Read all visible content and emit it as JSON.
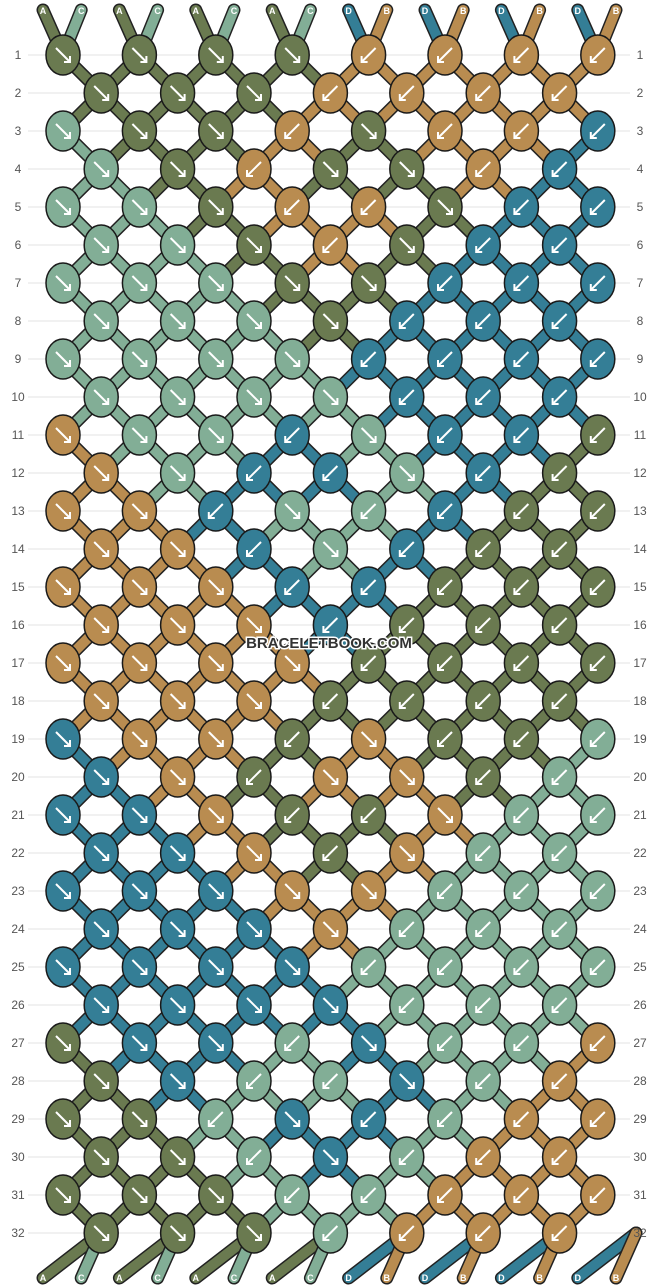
{
  "watermark": "BRACELETBOOK.COM",
  "colors": {
    "A": "#6a7a50",
    "C": "#82ae96",
    "D": "#347e96",
    "B": "#b98c50"
  },
  "strands_top": [
    "A",
    "C",
    "A",
    "C",
    "A",
    "C",
    "A",
    "C",
    "D",
    "B",
    "D",
    "B",
    "D",
    "B",
    "D",
    "B"
  ],
  "strands_bottom": [
    "A",
    "C",
    "A",
    "C",
    "A",
    "C",
    "A",
    "C",
    "D",
    "B",
    "D",
    "B",
    "D",
    "B",
    "D",
    "B"
  ],
  "row_numbers": [
    "1",
    "2",
    "3",
    "4",
    "5",
    "6",
    "7",
    "8",
    "9",
    "10",
    "11",
    "12",
    "13",
    "14",
    "15",
    "16",
    "17",
    "18",
    "19",
    "20",
    "21",
    "22",
    "23",
    "24",
    "25",
    "26",
    "27",
    "28",
    "29",
    "30",
    "31",
    "32"
  ],
  "knot_rows": [
    {
      "row": "1",
      "colors": [
        "A",
        "A",
        "A",
        "A",
        "B",
        "B",
        "B",
        "B"
      ],
      "arrows": [
        "R",
        "R",
        "R",
        "R",
        "L",
        "L",
        "L",
        "L"
      ]
    },
    {
      "row": "2",
      "colors": [
        "A",
        "A",
        "A",
        "B",
        "B",
        "B",
        "B"
      ],
      "arrows": [
        "R",
        "R",
        "R",
        "L",
        "L",
        "L",
        "L"
      ]
    },
    {
      "row": "3",
      "colors": [
        "C",
        "A",
        "A",
        "B",
        "A",
        "B",
        "B",
        "D"
      ],
      "arrows": [
        "R",
        "R",
        "R",
        "L",
        "R",
        "L",
        "L",
        "L"
      ]
    },
    {
      "row": "4",
      "colors": [
        "C",
        "A",
        "B",
        "A",
        "A",
        "B",
        "D"
      ],
      "arrows": [
        "R",
        "R",
        "L",
        "R",
        "R",
        "L",
        "L"
      ]
    },
    {
      "row": "5",
      "colors": [
        "C",
        "C",
        "A",
        "B",
        "B",
        "A",
        "D",
        "D"
      ],
      "arrows": [
        "R",
        "R",
        "R",
        "L",
        "L",
        "R",
        "L",
        "L"
      ]
    },
    {
      "row": "6",
      "colors": [
        "C",
        "C",
        "A",
        "B",
        "A",
        "D",
        "D"
      ],
      "arrows": [
        "R",
        "R",
        "R",
        "L",
        "R",
        "L",
        "L"
      ]
    },
    {
      "row": "7",
      "colors": [
        "C",
        "C",
        "C",
        "A",
        "A",
        "D",
        "D",
        "D"
      ],
      "arrows": [
        "R",
        "R",
        "R",
        "R",
        "R",
        "L",
        "L",
        "L"
      ]
    },
    {
      "row": "8",
      "colors": [
        "C",
        "C",
        "C",
        "A",
        "D",
        "D",
        "D"
      ],
      "arrows": [
        "R",
        "R",
        "R",
        "R",
        "L",
        "L",
        "L"
      ]
    },
    {
      "row": "9",
      "colors": [
        "C",
        "C",
        "C",
        "C",
        "D",
        "D",
        "D",
        "D"
      ],
      "arrows": [
        "R",
        "R",
        "R",
        "R",
        "L",
        "L",
        "L",
        "L"
      ]
    },
    {
      "row": "10",
      "colors": [
        "C",
        "C",
        "C",
        "C",
        "D",
        "D",
        "D"
      ],
      "arrows": [
        "R",
        "R",
        "R",
        "R",
        "L",
        "L",
        "L"
      ]
    },
    {
      "row": "11",
      "colors": [
        "B",
        "C",
        "C",
        "D",
        "C",
        "D",
        "D",
        "A"
      ],
      "arrows": [
        "R",
        "R",
        "R",
        "L",
        "R",
        "L",
        "L",
        "L"
      ]
    },
    {
      "row": "12",
      "colors": [
        "B",
        "C",
        "D",
        "D",
        "C",
        "D",
        "A"
      ],
      "arrows": [
        "R",
        "R",
        "L",
        "L",
        "R",
        "L",
        "L"
      ]
    },
    {
      "row": "13",
      "colors": [
        "B",
        "B",
        "D",
        "C",
        "C",
        "D",
        "A",
        "A"
      ],
      "arrows": [
        "R",
        "R",
        "L",
        "R",
        "L",
        "L",
        "L",
        "L"
      ]
    },
    {
      "row": "14",
      "colors": [
        "B",
        "B",
        "D",
        "C",
        "D",
        "A",
        "A"
      ],
      "arrows": [
        "R",
        "R",
        "L",
        "R",
        "L",
        "L",
        "L"
      ]
    },
    {
      "row": "15",
      "colors": [
        "B",
        "B",
        "B",
        "D",
        "D",
        "A",
        "A",
        "A"
      ],
      "arrows": [
        "R",
        "R",
        "R",
        "L",
        "L",
        "L",
        "L",
        "L"
      ]
    },
    {
      "row": "16",
      "colors": [
        "B",
        "B",
        "B",
        "D",
        "A",
        "A",
        "A"
      ],
      "arrows": [
        "R",
        "R",
        "R",
        "L",
        "L",
        "L",
        "L"
      ]
    },
    {
      "row": "17",
      "colors": [
        "B",
        "B",
        "B",
        "B",
        "A",
        "A",
        "A",
        "A"
      ],
      "arrows": [
        "R",
        "R",
        "R",
        "R",
        "L",
        "L",
        "L",
        "L"
      ]
    },
    {
      "row": "18",
      "colors": [
        "B",
        "B",
        "B",
        "A",
        "A",
        "A",
        "A"
      ],
      "arrows": [
        "R",
        "R",
        "R",
        "L",
        "L",
        "L",
        "L"
      ]
    },
    {
      "row": "19",
      "colors": [
        "D",
        "B",
        "B",
        "A",
        "B",
        "A",
        "A",
        "C"
      ],
      "arrows": [
        "R",
        "R",
        "R",
        "L",
        "R",
        "L",
        "L",
        "L"
      ]
    },
    {
      "row": "20",
      "colors": [
        "D",
        "B",
        "A",
        "B",
        "B",
        "A",
        "C"
      ],
      "arrows": [
        "R",
        "R",
        "L",
        "R",
        "R",
        "L",
        "L"
      ]
    },
    {
      "row": "21",
      "colors": [
        "D",
        "D",
        "B",
        "A",
        "A",
        "B",
        "C",
        "C"
      ],
      "arrows": [
        "R",
        "R",
        "R",
        "L",
        "L",
        "R",
        "L",
        "L"
      ]
    },
    {
      "row": "22",
      "colors": [
        "D",
        "D",
        "B",
        "A",
        "B",
        "C",
        "C"
      ],
      "arrows": [
        "R",
        "R",
        "R",
        "L",
        "R",
        "L",
        "L"
      ]
    },
    {
      "row": "23",
      "colors": [
        "D",
        "D",
        "D",
        "B",
        "B",
        "C",
        "C",
        "C"
      ],
      "arrows": [
        "R",
        "R",
        "R",
        "R",
        "R",
        "L",
        "L",
        "L"
      ]
    },
    {
      "row": "24",
      "colors": [
        "D",
        "D",
        "D",
        "B",
        "C",
        "C",
        "C"
      ],
      "arrows": [
        "R",
        "R",
        "R",
        "R",
        "L",
        "L",
        "L"
      ]
    },
    {
      "row": "25",
      "colors": [
        "D",
        "D",
        "D",
        "D",
        "C",
        "C",
        "C",
        "C"
      ],
      "arrows": [
        "R",
        "R",
        "R",
        "R",
        "L",
        "L",
        "L",
        "L"
      ]
    },
    {
      "row": "26",
      "colors": [
        "D",
        "D",
        "D",
        "D",
        "C",
        "C",
        "C"
      ],
      "arrows": [
        "R",
        "R",
        "R",
        "R",
        "L",
        "L",
        "L"
      ]
    },
    {
      "row": "27",
      "colors": [
        "A",
        "D",
        "D",
        "C",
        "D",
        "C",
        "C",
        "B"
      ],
      "arrows": [
        "R",
        "R",
        "R",
        "L",
        "R",
        "L",
        "L",
        "L"
      ]
    },
    {
      "row": "28",
      "colors": [
        "A",
        "D",
        "C",
        "C",
        "D",
        "C",
        "B"
      ],
      "arrows": [
        "R",
        "R",
        "L",
        "L",
        "R",
        "L",
        "L"
      ]
    },
    {
      "row": "29",
      "colors": [
        "A",
        "A",
        "C",
        "D",
        "D",
        "C",
        "B",
        "B"
      ],
      "arrows": [
        "R",
        "R",
        "L",
        "R",
        "L",
        "L",
        "L",
        "L"
      ]
    },
    {
      "row": "30",
      "colors": [
        "A",
        "A",
        "C",
        "D",
        "C",
        "B",
        "B"
      ],
      "arrows": [
        "R",
        "R",
        "L",
        "R",
        "L",
        "L",
        "L"
      ]
    },
    {
      "row": "31",
      "colors": [
        "A",
        "A",
        "A",
        "C",
        "C",
        "B",
        "B",
        "B"
      ],
      "arrows": [
        "R",
        "R",
        "R",
        "L",
        "L",
        "L",
        "L",
        "L"
      ]
    },
    {
      "row": "32",
      "colors": [
        "A",
        "A",
        "A",
        "C",
        "B",
        "B",
        "B"
      ],
      "arrows": [
        "R",
        "R",
        "R",
        "L",
        "L",
        "L",
        "L"
      ]
    }
  ]
}
